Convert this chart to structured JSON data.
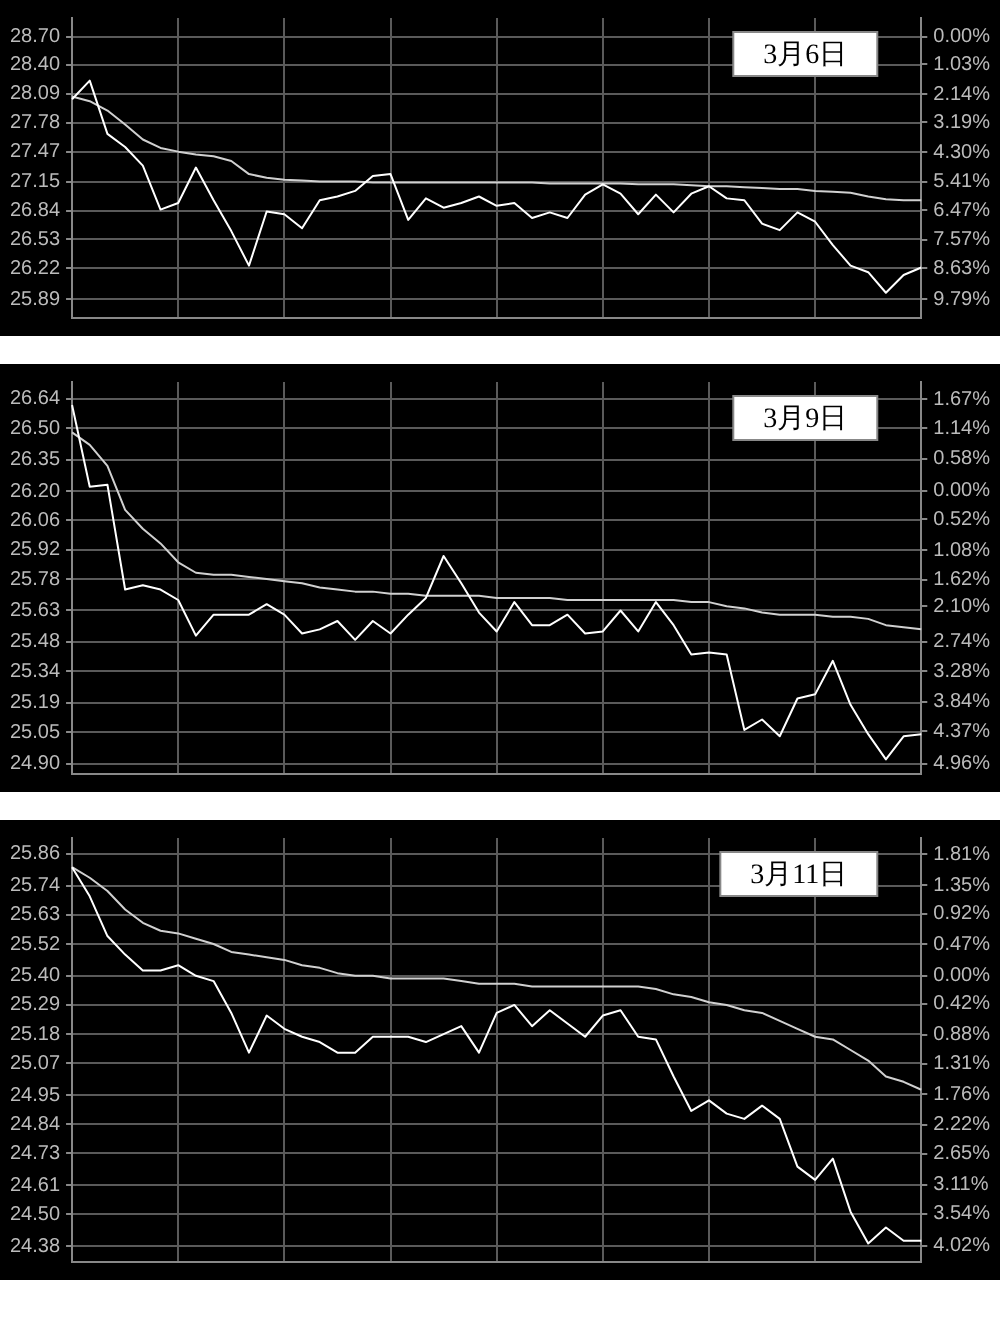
{
  "chart_data": [
    {
      "type": "line",
      "title": "3月6日",
      "grid": true,
      "categories": [
        null,
        null,
        null,
        null,
        null,
        null,
        null,
        null,
        null,
        null,
        null,
        null,
        null,
        null,
        null,
        null,
        null,
        null,
        null,
        null,
        null,
        null,
        null,
        null,
        null,
        null,
        null,
        null,
        null,
        null,
        null,
        null,
        null,
        null,
        null,
        null,
        null,
        null,
        null,
        null,
        null,
        null,
        null,
        null,
        null,
        null,
        null,
        null,
        null
      ],
      "ylim": [
        25.69,
        28.9
      ],
      "yticks": [
        {
          "value": 28.7,
          "label": "28.70"
        },
        {
          "value": 28.4,
          "label": "28.40"
        },
        28.09,
        27.78,
        27.47,
        27.15,
        26.84,
        26.53,
        26.22,
        25.89
      ],
      "y2lim": [
        -10.49,
        0.7
      ],
      "y2ticks": [
        {
          "value": 0,
          "label": "0.00%"
        },
        {
          "value": -1.03,
          "label": "1.03%"
        },
        {
          "value": -2.14,
          "label": "2.14%"
        },
        {
          "value": -3.19,
          "label": "3.19%"
        },
        {
          "value": -4.3,
          "label": "4.30%"
        },
        {
          "value": -5.41,
          "label": "5.41%"
        },
        {
          "value": -6.47,
          "label": "6.47%"
        },
        {
          "value": -7.57,
          "label": "7.57%"
        },
        {
          "value": -8.63,
          "label": "8.63%"
        },
        {
          "value": -9.79,
          "label": "9.79%"
        }
      ],
      "series": [
        {
          "color": "#ffffff",
          "values": [
            28.03,
            28.23,
            27.66,
            27.52,
            27.32,
            26.85,
            26.92,
            27.3,
            26.95,
            26.62,
            26.25,
            26.83,
            26.8,
            26.65,
            26.95,
            26.99,
            27.05,
            27.21,
            27.23,
            26.74,
            26.97,
            26.87,
            26.92,
            26.99,
            26.89,
            26.92,
            26.76,
            26.82,
            26.76,
            27.01,
            27.12,
            27.02,
            26.8,
            27.01,
            26.82,
            27.02,
            27.1,
            26.97,
            26.95,
            26.7,
            26.63,
            26.82,
            26.72,
            26.47,
            26.25,
            26.18,
            25.96,
            26.15,
            26.23
          ]
        },
        {
          "color": "#d0d0d0",
          "values": [
            28.06,
            28.01,
            27.91,
            27.76,
            27.6,
            27.51,
            27.47,
            27.44,
            27.42,
            27.37,
            27.23,
            27.19,
            27.17,
            27.16,
            27.15,
            27.15,
            27.15,
            27.14,
            27.14,
            27.14,
            27.14,
            27.14,
            27.14,
            27.14,
            27.14,
            27.14,
            27.14,
            27.13,
            27.13,
            27.13,
            27.13,
            27.13,
            27.12,
            27.12,
            27.12,
            27.11,
            27.1,
            27.1,
            27.09,
            27.08,
            27.07,
            27.07,
            27.05,
            27.04,
            27.03,
            26.99,
            26.96,
            26.95,
            26.95
          ]
        }
      ]
    },
    {
      "type": "line",
      "title": "3月9日",
      "grid": true,
      "categories": [
        null,
        null,
        null,
        null,
        null,
        null,
        null,
        null,
        null,
        null,
        null,
        null,
        null,
        null,
        null,
        null,
        null,
        null,
        null,
        null,
        null,
        null,
        null,
        null,
        null,
        null,
        null,
        null,
        null,
        null,
        null,
        null,
        null,
        null,
        null,
        null,
        null,
        null,
        null,
        null,
        null,
        null,
        null,
        null,
        null,
        null,
        null,
        null,
        null
      ],
      "ylim": [
        24.85,
        26.72
      ],
      "yticks": [
        26.64,
        {
          "value": 26.5,
          "label": "26.50"
        },
        26.35,
        {
          "value": 26.2,
          "label": "26.20"
        },
        26.06,
        25.92,
        25.78,
        25.63,
        25.48,
        25.34,
        25.19,
        25.05,
        {
          "value": 24.9,
          "label": "24.90"
        }
      ],
      "y2lim": [
        -5.15,
        1.98
      ],
      "y2ticks": [
        {
          "value": 1.67,
          "label": "1.67%"
        },
        {
          "value": 1.14,
          "label": "1.14%"
        },
        {
          "value": 0.58,
          "label": "0.58%"
        },
        {
          "value": 0,
          "label": "0.00%"
        },
        {
          "value": -0.52,
          "label": "0.52%"
        },
        {
          "value": -1.08,
          "label": "1.08%"
        },
        {
          "value": -1.62,
          "label": "1.62%"
        },
        {
          "value": -2.1,
          "label": "2.10%"
        },
        {
          "value": -2.74,
          "label": "2.74%"
        },
        {
          "value": -3.28,
          "label": "3.28%"
        },
        {
          "value": -3.84,
          "label": "3.84%"
        },
        {
          "value": -4.37,
          "label": "4.37%"
        },
        {
          "value": -4.96,
          "label": "4.96%"
        }
      ],
      "series": [
        {
          "color": "#ffffff",
          "values": [
            26.61,
            26.22,
            26.23,
            25.73,
            25.75,
            25.73,
            25.68,
            25.51,
            25.61,
            25.61,
            25.61,
            25.66,
            25.61,
            25.52,
            25.54,
            25.58,
            25.49,
            25.58,
            25.52,
            25.61,
            25.69,
            25.89,
            25.76,
            25.62,
            25.53,
            25.67,
            25.56,
            25.56,
            25.61,
            25.52,
            25.53,
            25.63,
            25.53,
            25.67,
            25.56,
            25.42,
            25.43,
            25.42,
            25.06,
            25.11,
            25.03,
            25.21,
            25.23,
            25.39,
            25.18,
            25.04,
            24.92,
            25.03,
            25.04
          ]
        },
        {
          "color": "#d0d0d0",
          "values": [
            26.48,
            26.42,
            26.32,
            26.11,
            26.02,
            25.95,
            25.86,
            25.81,
            25.8,
            25.8,
            25.79,
            25.78,
            25.77,
            25.76,
            25.74,
            25.73,
            25.72,
            25.72,
            25.71,
            25.71,
            25.7,
            25.7,
            25.7,
            25.7,
            25.69,
            25.69,
            25.69,
            25.69,
            25.68,
            25.68,
            25.68,
            25.68,
            25.68,
            25.68,
            25.68,
            25.67,
            25.67,
            25.65,
            25.64,
            25.62,
            25.61,
            25.61,
            25.61,
            25.6,
            25.6,
            25.59,
            25.56,
            25.55,
            25.54
          ]
        }
      ]
    },
    {
      "type": "line",
      "title": "3月11日",
      "grid": true,
      "categories": [
        null,
        null,
        null,
        null,
        null,
        null,
        null,
        null,
        null,
        null,
        null,
        null,
        null,
        null,
        null,
        null,
        null,
        null,
        null,
        null,
        null,
        null,
        null,
        null,
        null,
        null,
        null,
        null,
        null,
        null,
        null,
        null,
        null,
        null,
        null,
        null,
        null,
        null,
        null,
        null,
        null,
        null,
        null,
        null,
        null,
        null,
        null,
        null,
        null
      ],
      "ylim": [
        24.32,
        25.92
      ],
      "yticks": [
        25.86,
        25.74,
        25.63,
        25.52,
        {
          "value": 25.4,
          "label": "25.40"
        },
        25.29,
        25.18,
        25.07,
        24.95,
        24.84,
        24.73,
        24.61,
        {
          "value": 24.5,
          "label": "24.50"
        },
        24.38
      ],
      "y2lim": [
        -4.26,
        2.05
      ],
      "y2ticks": [
        {
          "value": 1.81,
          "label": "1.81%"
        },
        {
          "value": 1.35,
          "label": "1.35%"
        },
        {
          "value": 0.92,
          "label": "0.92%"
        },
        {
          "value": 0.47,
          "label": "0.47%"
        },
        {
          "value": 0,
          "label": "0.00%"
        },
        {
          "value": -0.42,
          "label": "0.42%"
        },
        {
          "value": -0.88,
          "label": "0.88%"
        },
        {
          "value": -1.31,
          "label": "1.31%"
        },
        {
          "value": -1.76,
          "label": "1.76%"
        },
        {
          "value": -2.22,
          "label": "2.22%"
        },
        {
          "value": -2.65,
          "label": "2.65%"
        },
        {
          "value": -3.11,
          "label": "3.11%"
        },
        {
          "value": -3.54,
          "label": "3.54%"
        },
        {
          "value": -4.02,
          "label": "4.02%"
        }
      ],
      "series": [
        {
          "color": "#ffffff",
          "values": [
            25.81,
            25.7,
            25.55,
            25.48,
            25.42,
            25.42,
            25.44,
            25.4,
            25.38,
            25.26,
            25.11,
            25.25,
            25.2,
            25.17,
            25.15,
            25.11,
            25.11,
            25.17,
            25.17,
            25.17,
            25.15,
            25.18,
            25.21,
            25.11,
            25.26,
            25.29,
            25.21,
            25.27,
            25.22,
            25.17,
            25.25,
            25.27,
            25.17,
            25.16,
            25.02,
            24.89,
            24.93,
            24.88,
            24.86,
            24.91,
            24.86,
            24.68,
            24.63,
            24.71,
            24.51,
            24.39,
            24.45,
            24.4,
            24.4
          ]
        },
        {
          "color": "#d0d0d0",
          "values": [
            25.81,
            25.77,
            25.72,
            25.65,
            25.6,
            25.57,
            25.56,
            25.54,
            25.52,
            25.49,
            25.48,
            25.47,
            25.46,
            25.44,
            25.43,
            25.41,
            25.4,
            25.4,
            25.39,
            25.39,
            25.39,
            25.39,
            25.38,
            25.37,
            25.37,
            25.37,
            25.36,
            25.36,
            25.36,
            25.36,
            25.36,
            25.36,
            25.36,
            25.35,
            25.33,
            25.32,
            25.3,
            25.29,
            25.27,
            25.26,
            25.23,
            25.2,
            25.17,
            25.16,
            25.12,
            25.08,
            25.02,
            25.0,
            24.97
          ]
        }
      ]
    }
  ]
}
